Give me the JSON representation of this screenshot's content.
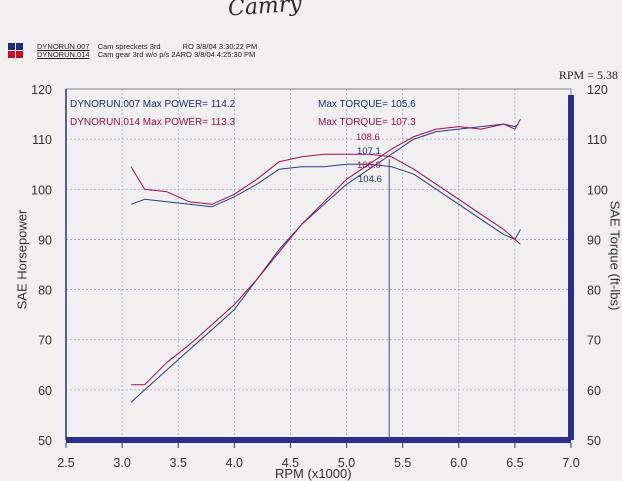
{
  "signature": "Camry",
  "header": {
    "runs": [
      {
        "swatch_color": "#1f2a7a",
        "run": "DYNORUN.007",
        "desc": "Cam spreckets 3rd",
        "tag": "RO",
        "date": "3/8/04 3:30:22 PM"
      },
      {
        "swatch_color": "#c0102a",
        "run": "DYNORUN.014",
        "desc": "Cam gear 3rd w/o p/s",
        "tag": "2ARO",
        "date": "3/8/04 4:25:30 PM"
      }
    ]
  },
  "rpm_readout": "RPM = 5.38",
  "chart_data": {
    "type": "line",
    "xlabel": "RPM (x1000)",
    "ylabel_left": "SAE Horsepower",
    "ylabel_right": "SAE Torque (ft-lbs)",
    "xlim": [
      2.5,
      7.0
    ],
    "ylim": [
      50,
      120
    ],
    "x_ticks": [
      "2.5",
      "3.0",
      "3.5",
      "4.0",
      "4.5",
      "5.0",
      "5.5",
      "6.0",
      "6.5",
      "7.0"
    ],
    "y_ticks": [
      "50",
      "60",
      "70",
      "80",
      "90",
      "100",
      "110",
      "120"
    ],
    "grid": true,
    "cursor_x": 5.38,
    "annotations": [
      {
        "text": "DYNORUN.007  Max POWER= 114.2",
        "color": "#1f2a7a"
      },
      {
        "text": "DYNORUN.014  Max POWER= 113.3",
        "color": "#a0104a"
      },
      {
        "text": "Max TORQUE= 105.6",
        "color": "#1f2a7a"
      },
      {
        "text": "Max TORQUE= 107.3",
        "color": "#a0104a"
      }
    ],
    "cursor_labels": [
      {
        "text": "108.6",
        "color": "#a0104a"
      },
      {
        "text": "107.1",
        "color": "#1f2a7a"
      },
      {
        "text": "106.0",
        "color": "#a0104a"
      },
      {
        "text": "104.6",
        "color": "#1f2a7a"
      }
    ],
    "series": [
      {
        "run": "DYNORUN.007",
        "kind": "power",
        "color": "#2a3a8a",
        "x": [
          3.08,
          3.2,
          3.4,
          3.6,
          3.8,
          4.0,
          4.2,
          4.4,
          4.6,
          4.8,
          5.0,
          5.2,
          5.4,
          5.6,
          5.8,
          6.0,
          6.2,
          6.4,
          6.5,
          6.53
        ],
        "y": [
          57.5,
          60,
          64,
          68,
          72,
          76,
          82,
          88,
          93,
          97,
          101,
          104,
          107,
          110,
          111.5,
          112,
          112.5,
          113,
          112.5,
          113
        ]
      },
      {
        "run": "DYNORUN.014",
        "kind": "power",
        "color": "#a0104a",
        "x": [
          3.08,
          3.2,
          3.4,
          3.6,
          3.8,
          4.0,
          4.2,
          4.4,
          4.6,
          4.8,
          5.0,
          5.2,
          5.4,
          5.6,
          5.8,
          6.0,
          6.2,
          6.4,
          6.5,
          6.55
        ],
        "y": [
          61,
          61,
          65.5,
          69,
          73,
          77,
          82,
          87.5,
          93,
          97.5,
          102,
          105,
          108,
          110.5,
          112,
          112.5,
          112,
          113,
          112,
          114
        ]
      },
      {
        "run": "DYNORUN.007",
        "kind": "torque",
        "color": "#2a3a8a",
        "x": [
          3.08,
          3.2,
          3.4,
          3.6,
          3.8,
          4.0,
          4.2,
          4.4,
          4.6,
          4.8,
          5.0,
          5.2,
          5.4,
          5.6,
          5.8,
          6.0,
          6.2,
          6.4,
          6.5,
          6.55
        ],
        "y": [
          97,
          98,
          97.5,
          97,
          96.5,
          98.5,
          101,
          104,
          104.5,
          104.5,
          105,
          105,
          104.5,
          103,
          100,
          97,
          94,
          91,
          90,
          92
        ]
      },
      {
        "run": "DYNORUN.014",
        "kind": "torque",
        "color": "#a0104a",
        "x": [
          3.08,
          3.2,
          3.4,
          3.6,
          3.8,
          4.0,
          4.2,
          4.4,
          4.6,
          4.8,
          5.0,
          5.2,
          5.4,
          5.6,
          5.8,
          6.0,
          6.2,
          6.4,
          6.5,
          6.55
        ],
        "y": [
          104.5,
          100,
          99.5,
          97.5,
          97,
          99,
          102,
          105.5,
          106.5,
          107,
          107,
          107,
          106.5,
          104,
          101,
          98,
          95,
          92,
          90,
          89
        ]
      }
    ]
  }
}
